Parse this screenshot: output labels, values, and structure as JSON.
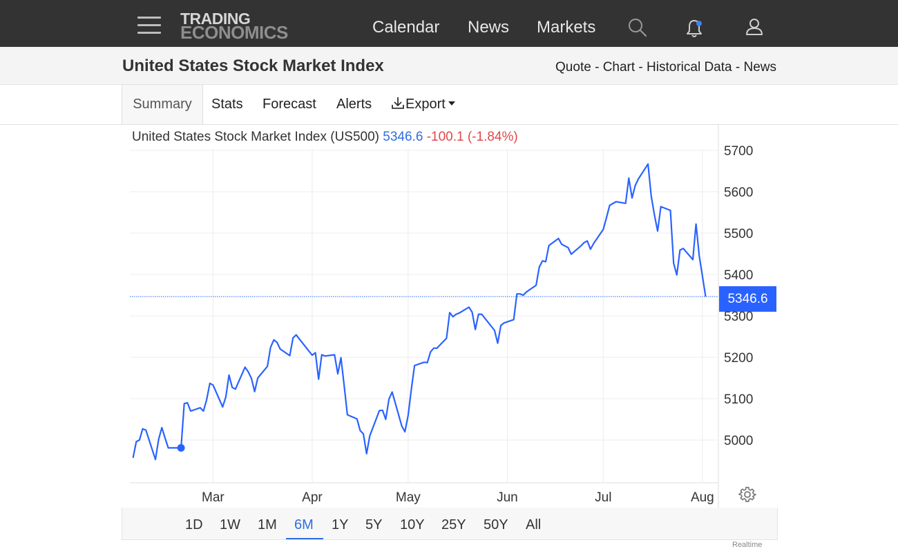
{
  "nav": {
    "logo_line1": "TRADING",
    "logo_line2": "ECONOMICS",
    "links": [
      "Calendar",
      "News",
      "Markets"
    ],
    "icons": [
      "menu-icon",
      "search-icon",
      "bell-icon",
      "user-icon"
    ],
    "notification_dot_color": "#3b82f6"
  },
  "header": {
    "title": "United States Stock Market Index",
    "links": [
      "Quote",
      "Chart",
      "Historical Data",
      "News"
    ],
    "separator": " - "
  },
  "tabs": [
    "Summary",
    "Stats",
    "Forecast",
    "Alerts",
    "Export"
  ],
  "active_tab": "Summary",
  "legend": {
    "name": "United States Stock Market Index (US500)",
    "value": "5346.6",
    "change": "-100.1",
    "change_pct": "(-1.84%)"
  },
  "ranges": [
    "1D",
    "1W",
    "1M",
    "6M",
    "1Y",
    "5Y",
    "10Y",
    "25Y",
    "50Y",
    "All"
  ],
  "active_range": "6M",
  "footnote": "Realtime",
  "colors": {
    "line": "#2962ff",
    "positive_value": "#2f6de0",
    "negative_change": "#e04848",
    "navbar": "#333333"
  },
  "chart_data": {
    "type": "line",
    "title": "United States Stock Market Index (US500)",
    "x_tick_labels": [
      "Mar",
      "Apr",
      "May",
      "Jun",
      "Jul",
      "Aug"
    ],
    "x_tick_dates": [
      "2024-03-01",
      "2024-04-01",
      "2024-05-01",
      "2024-06-01",
      "2024-07-01",
      "2024-08-01"
    ],
    "y_ticks": [
      5000,
      5100,
      5200,
      5300,
      5400,
      5500,
      5600,
      5700
    ],
    "ylim": [
      4930,
      5730
    ],
    "grid": true,
    "last_price": 5346.6,
    "last_price_label": "5346.6",
    "marker": {
      "date": "2024-02-20",
      "value": 4981
    },
    "series": [
      {
        "values": [
          [
            "2024-02-05",
            4957
          ],
          [
            "2024-02-06",
            4996
          ],
          [
            "2024-02-07",
            5000
          ],
          [
            "2024-02-08",
            5027
          ],
          [
            "2024-02-09",
            5024
          ],
          [
            "2024-02-12",
            4953
          ],
          [
            "2024-02-13",
            5002
          ],
          [
            "2024-02-14",
            5030
          ],
          [
            "2024-02-15",
            5005
          ],
          [
            "2024-02-16",
            4981
          ],
          [
            "2024-02-20",
            4981
          ],
          [
            "2024-02-21",
            5088
          ],
          [
            "2024-02-22",
            5090
          ],
          [
            "2024-02-23",
            5070
          ],
          [
            "2024-02-26",
            5078
          ],
          [
            "2024-02-27",
            5070
          ],
          [
            "2024-02-28",
            5097
          ],
          [
            "2024-02-29",
            5137
          ],
          [
            "2024-03-01",
            5133
          ],
          [
            "2024-03-04",
            5080
          ],
          [
            "2024-03-05",
            5104
          ],
          [
            "2024-03-06",
            5157
          ],
          [
            "2024-03-07",
            5127
          ],
          [
            "2024-03-08",
            5123
          ],
          [
            "2024-03-11",
            5176
          ],
          [
            "2024-03-12",
            5165
          ],
          [
            "2024-03-13",
            5149
          ],
          [
            "2024-03-14",
            5117
          ],
          [
            "2024-03-15",
            5150
          ],
          [
            "2024-03-18",
            5178
          ],
          [
            "2024-03-19",
            5224
          ],
          [
            "2024-03-20",
            5242
          ],
          [
            "2024-03-21",
            5236
          ],
          [
            "2024-03-22",
            5220
          ],
          [
            "2024-03-25",
            5204
          ],
          [
            "2024-03-26",
            5247
          ],
          [
            "2024-03-27",
            5254
          ],
          [
            "2024-03-28",
            5244
          ],
          [
            "2024-04-01",
            5205
          ],
          [
            "2024-04-02",
            5211
          ],
          [
            "2024-04-03",
            5147
          ],
          [
            "2024-04-04",
            5206
          ],
          [
            "2024-04-05",
            5203
          ],
          [
            "2024-04-08",
            5206
          ],
          [
            "2024-04-09",
            5160
          ],
          [
            "2024-04-10",
            5199
          ],
          [
            "2024-04-11",
            5132
          ],
          [
            "2024-04-12",
            5061
          ],
          [
            "2024-04-15",
            5051
          ],
          [
            "2024-04-16",
            5023
          ],
          [
            "2024-04-17",
            5015
          ],
          [
            "2024-04-18",
            4967
          ],
          [
            "2024-04-19",
            5010
          ],
          [
            "2024-04-22",
            5071
          ],
          [
            "2024-04-23",
            5072
          ],
          [
            "2024-04-24",
            5050
          ],
          [
            "2024-04-25",
            5099
          ],
          [
            "2024-04-26",
            5116
          ],
          [
            "2024-04-29",
            5034
          ],
          [
            "2024-04-30",
            5020
          ],
          [
            "2024-05-01",
            5059
          ],
          [
            "2024-05-02",
            5123
          ],
          [
            "2024-05-03",
            5180
          ],
          [
            "2024-05-06",
            5188
          ],
          [
            "2024-05-07",
            5187
          ],
          [
            "2024-05-08",
            5213
          ],
          [
            "2024-05-09",
            5222
          ],
          [
            "2024-05-10",
            5222
          ],
          [
            "2024-05-13",
            5246
          ],
          [
            "2024-05-14",
            5308
          ],
          [
            "2024-05-15",
            5298
          ],
          [
            "2024-05-16",
            5304
          ],
          [
            "2024-05-17",
            5307
          ],
          [
            "2024-05-20",
            5321
          ],
          [
            "2024-05-21",
            5309
          ],
          [
            "2024-05-22",
            5267
          ],
          [
            "2024-05-23",
            5304
          ],
          [
            "2024-05-24",
            5304
          ],
          [
            "2024-05-28",
            5265
          ],
          [
            "2024-05-29",
            5234
          ],
          [
            "2024-05-30",
            5277
          ],
          [
            "2024-05-31",
            5283
          ],
          [
            "2024-06-03",
            5291
          ],
          [
            "2024-06-04",
            5353
          ],
          [
            "2024-06-05",
            5353
          ],
          [
            "2024-06-06",
            5350
          ],
          [
            "2024-06-07",
            5358
          ],
          [
            "2024-06-10",
            5374
          ],
          [
            "2024-06-11",
            5418
          ],
          [
            "2024-06-12",
            5433
          ],
          [
            "2024-06-13",
            5431
          ],
          [
            "2024-06-14",
            5470
          ],
          [
            "2024-06-17",
            5487
          ],
          [
            "2024-06-18",
            5473
          ],
          [
            "2024-06-20",
            5465
          ],
          [
            "2024-06-21",
            5449
          ],
          [
            "2024-06-24",
            5469
          ],
          [
            "2024-06-25",
            5477
          ],
          [
            "2024-06-26",
            5481
          ],
          [
            "2024-06-27",
            5461
          ],
          [
            "2024-06-28",
            5475
          ],
          [
            "2024-07-01",
            5509
          ],
          [
            "2024-07-02",
            5537
          ],
          [
            "2024-07-03",
            5567
          ],
          [
            "2024-07-05",
            5576
          ],
          [
            "2024-07-08",
            5572
          ],
          [
            "2024-07-09",
            5633
          ],
          [
            "2024-07-10",
            5585
          ],
          [
            "2024-07-11",
            5615
          ],
          [
            "2024-07-12",
            5631
          ],
          [
            "2024-07-15",
            5667
          ],
          [
            "2024-07-16",
            5589
          ],
          [
            "2024-07-17",
            5544
          ],
          [
            "2024-07-18",
            5505
          ],
          [
            "2024-07-19",
            5564
          ],
          [
            "2024-07-22",
            5555
          ],
          [
            "2024-07-23",
            5427
          ],
          [
            "2024-07-24",
            5399
          ],
          [
            "2024-07-25",
            5459
          ],
          [
            "2024-07-26",
            5463
          ],
          [
            "2024-07-29",
            5436
          ],
          [
            "2024-07-30",
            5522
          ],
          [
            "2024-07-31",
            5446
          ],
          [
            "2024-08-02",
            5346.6
          ]
        ]
      }
    ]
  }
}
